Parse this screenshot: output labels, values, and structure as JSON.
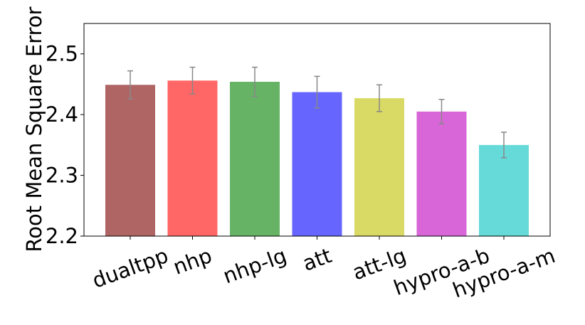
{
  "chart_data": {
    "type": "bar",
    "y_label": "Root Mean Square Error",
    "categories": [
      "dualtpp",
      "nhp",
      "nhp-lg",
      "att",
      "att-lg",
      "hypro-a-b",
      "hypro-a-m"
    ],
    "values": [
      2.449,
      2.456,
      2.454,
      2.437,
      2.427,
      2.405,
      2.35
    ],
    "errors": [
      0.023,
      0.022,
      0.024,
      0.026,
      0.022,
      0.02,
      0.021
    ],
    "colors": [
      "#b06565",
      "#ff6666",
      "#66b366",
      "#6666ff",
      "#d9d966",
      "#d966d9",
      "#66d9d9"
    ],
    "error_color": "#888888",
    "ylim": [
      2.2,
      2.55
    ],
    "yticks": [
      2.2,
      2.3,
      2.4,
      2.5
    ]
  }
}
